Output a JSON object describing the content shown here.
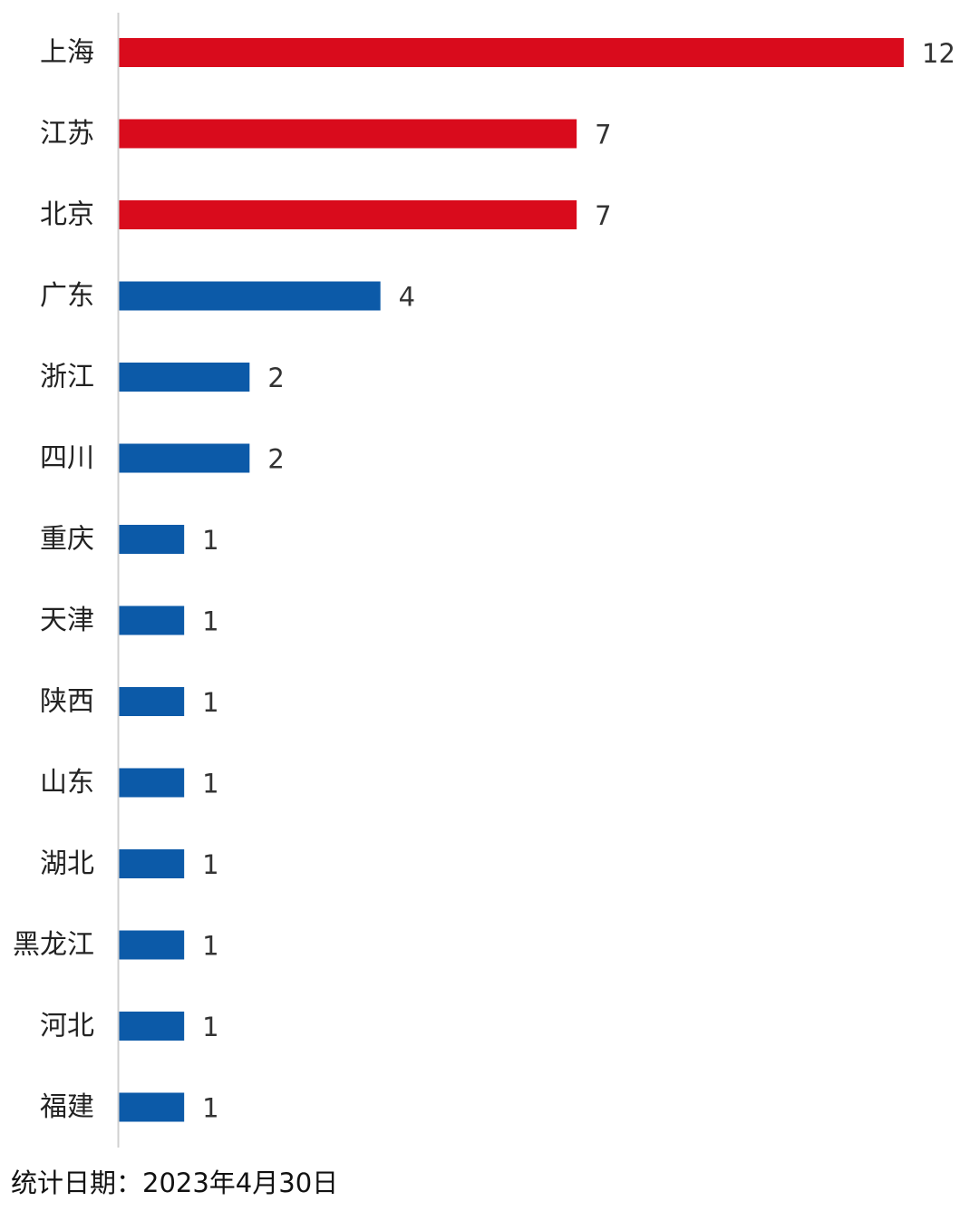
{
  "chart_data": {
    "type": "bar",
    "orientation": "horizontal",
    "categories": [
      "上海",
      "江苏",
      "北京",
      "广东",
      "浙江",
      "四川",
      "重庆",
      "天津",
      "陕西",
      "山东",
      "湖北",
      "黑龙江",
      "河北",
      "福建"
    ],
    "values": [
      12,
      7,
      7,
      4,
      2,
      2,
      1,
      1,
      1,
      1,
      1,
      1,
      1,
      1
    ],
    "bar_colors": [
      "#d90b1c",
      "#d90b1c",
      "#d90b1c",
      "#0c5aa8",
      "#0c5aa8",
      "#0c5aa8",
      "#0c5aa8",
      "#0c5aa8",
      "#0c5aa8",
      "#0c5aa8",
      "#0c5aa8",
      "#0c5aa8",
      "#0c5aa8",
      "#0c5aa8"
    ],
    "highlight_color": "#d90b1c",
    "base_color": "#0c5aa8",
    "axis_color": "#d0d0d0",
    "xlim": [
      0,
      12
    ],
    "grid": false,
    "legend": "none",
    "data_labels": true
  },
  "footnote": "统计日期：2023年4月30日"
}
